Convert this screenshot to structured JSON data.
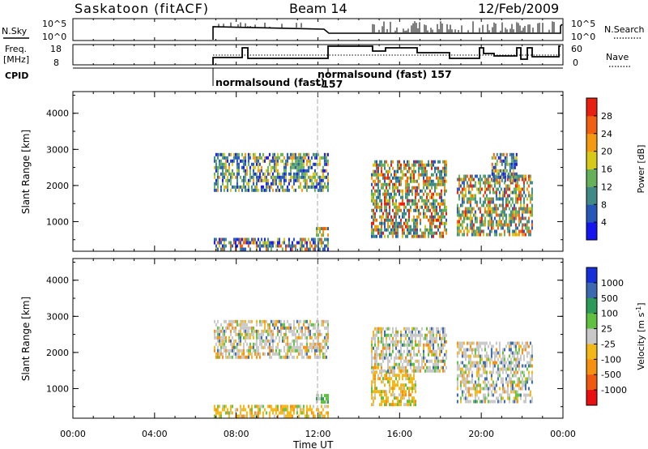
{
  "header": {
    "station": "Saskatoon (fitACF)",
    "beam": "Beam 14",
    "date": "12/Feb/2009"
  },
  "noise_panel": {
    "left_label": "N.Sky",
    "right_label": "N.Search",
    "left_ticks": [
      "10^5",
      "10^0"
    ],
    "right_ticks": [
      "10^5",
      "10^0"
    ]
  },
  "freq_panel": {
    "left_label_line1": "Freq.",
    "left_label_line2": "[MHz]",
    "right_label": "Nave",
    "left_ticks": [
      "18",
      "8"
    ],
    "right_ticks": [
      "60",
      "0"
    ]
  },
  "cpid": {
    "label": "CPID",
    "entries": [
      "normalsound (fast)",
      "normalsound (fast) 157",
      "-157"
    ]
  },
  "chart_data": [
    {
      "type": "heatmap",
      "name": "power",
      "ylabel": "Slant Range [km]",
      "xlabel": "Time UT",
      "x_ticks": [
        "00:00",
        "04:00",
        "08:00",
        "12:00",
        "16:00",
        "20:00",
        "00:00"
      ],
      "y_ticks": [
        "1000",
        "2000",
        "3000",
        "4000"
      ],
      "ylim": [
        180,
        4600
      ],
      "colorbar": {
        "label": "Power [dB]",
        "ticks": [
          "4",
          "8",
          "12",
          "16",
          "20",
          "24",
          "28"
        ],
        "colors": [
          "#1515ee",
          "#2657b8",
          "#3f8a86",
          "#67b05a",
          "#d6c918",
          "#f39a12",
          "#f06010",
          "#e82010"
        ]
      },
      "echo_regions": [
        {
          "t0": 6.9,
          "t1": 12.5,
          "r0": 1900,
          "r1": 2900,
          "level": "mid"
        },
        {
          "t0": 6.9,
          "t1": 12.5,
          "r0": 200,
          "r1": 550,
          "level": "low"
        },
        {
          "t0": 11.9,
          "t1": 12.5,
          "r0": 650,
          "r1": 850,
          "level": "high"
        },
        {
          "t0": 14.6,
          "t1": 18.3,
          "r0": 600,
          "r1": 2700,
          "level": "high"
        },
        {
          "t0": 18.8,
          "t1": 22.5,
          "r0": 600,
          "r1": 2300,
          "level": "high"
        },
        {
          "t0": 20.5,
          "t1": 21.7,
          "r0": 2100,
          "r1": 2900,
          "level": "low"
        }
      ]
    },
    {
      "type": "heatmap",
      "name": "velocity",
      "ylabel": "Slant Range [km]",
      "xlabel": "Time UT",
      "x_ticks": [
        "00:00",
        "04:00",
        "08:00",
        "12:00",
        "16:00",
        "20:00",
        "00:00"
      ],
      "y_ticks": [
        "1000",
        "2000",
        "3000",
        "4000"
      ],
      "ylim": [
        180,
        4600
      ],
      "colorbar": {
        "label": "Velocity [m s",
        "label_sup": "-1",
        "label_end": "]",
        "ticks": [
          "1000",
          "500",
          "100",
          "25",
          "-25",
          "-100",
          "-500",
          "-1000"
        ],
        "colors": [
          "#1530d8",
          "#3a69b0",
          "#2e9a5a",
          "#60c040",
          "#c8c8c8",
          "#f2b818",
          "#f59010",
          "#f05a10",
          "#e81010"
        ]
      },
      "echo_regions": [
        {
          "t0": 6.9,
          "t1": 12.5,
          "r0": 1900,
          "r1": 2900,
          "level": "grey"
        },
        {
          "t0": 6.9,
          "t1": 12.5,
          "r0": 200,
          "r1": 550,
          "level": "orange"
        },
        {
          "t0": 11.9,
          "t1": 12.5,
          "r0": 650,
          "r1": 850,
          "level": "green"
        },
        {
          "t0": 14.6,
          "t1": 16.8,
          "r0": 600,
          "r1": 1500,
          "level": "orange"
        },
        {
          "t0": 14.6,
          "t1": 18.3,
          "r0": 1500,
          "r1": 2700,
          "level": "grey"
        },
        {
          "t0": 18.8,
          "t1": 22.5,
          "r0": 600,
          "r1": 2300,
          "level": "grey"
        }
      ]
    }
  ]
}
